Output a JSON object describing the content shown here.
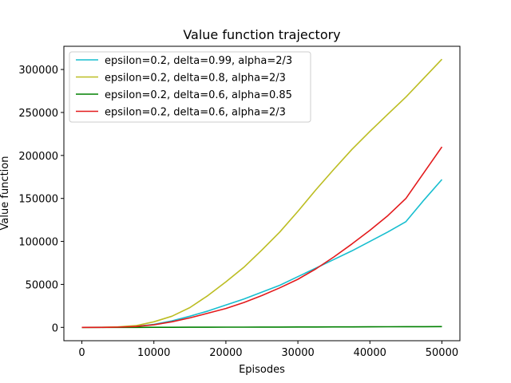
{
  "chart_data": {
    "type": "line",
    "title": "Value function trajectory",
    "xlabel": "Episodes",
    "ylabel": "Value function",
    "xlim": [
      -2500,
      52500
    ],
    "ylim": [
      -15500,
      327000
    ],
    "xticks": [
      0,
      10000,
      20000,
      30000,
      40000,
      50000
    ],
    "xtick_labels": [
      "0",
      "10000",
      "20000",
      "30000",
      "40000",
      "50000"
    ],
    "yticks": [
      0,
      50000,
      100000,
      150000,
      200000,
      250000,
      300000
    ],
    "ytick_labels": [
      "0",
      "50000",
      "100000",
      "150000",
      "200000",
      "250000",
      "300000"
    ],
    "grid": false,
    "legend_position": "top-left",
    "x": [
      0,
      2500,
      5000,
      7500,
      10000,
      12500,
      15000,
      17500,
      20000,
      22500,
      25000,
      27500,
      30000,
      32500,
      35000,
      37500,
      40000,
      42500,
      45000,
      47500,
      50000
    ],
    "series": [
      {
        "name": "epsilon=0.2, delta=0.99, alpha=2/3",
        "color": "#17becf",
        "values": [
          0,
          50,
          300,
          1200,
          3500,
          7500,
          13000,
          19000,
          26000,
          33000,
          41000,
          49000,
          59000,
          69000,
          79000,
          89000,
          100000,
          111000,
          123000,
          148000,
          172000
        ]
      },
      {
        "name": "epsilon=0.2, delta=0.8, alpha=2/3",
        "color": "#bcbd22",
        "values": [
          0,
          80,
          600,
          2000,
          6500,
          13000,
          23000,
          37000,
          53000,
          70000,
          90000,
          111000,
          135000,
          160000,
          184000,
          207000,
          228000,
          248000,
          268000,
          290000,
          312000
        ]
      },
      {
        "name": "epsilon=0.2, delta=0.6, alpha=0.85",
        "color": "#008000",
        "values": [
          0,
          0,
          10,
          30,
          60,
          100,
          150,
          200,
          250,
          300,
          350,
          400,
          450,
          500,
          550,
          600,
          650,
          700,
          800,
          850,
          900
        ]
      },
      {
        "name": "epsilon=0.2, delta=0.6, alpha=2/3",
        "color": "#e31a1c",
        "values": [
          0,
          40,
          250,
          1000,
          3000,
          6500,
          11000,
          16500,
          22000,
          29000,
          37000,
          46000,
          56000,
          68000,
          82000,
          97000,
          113000,
          130000,
          150000,
          180000,
          210000
        ]
      }
    ]
  }
}
